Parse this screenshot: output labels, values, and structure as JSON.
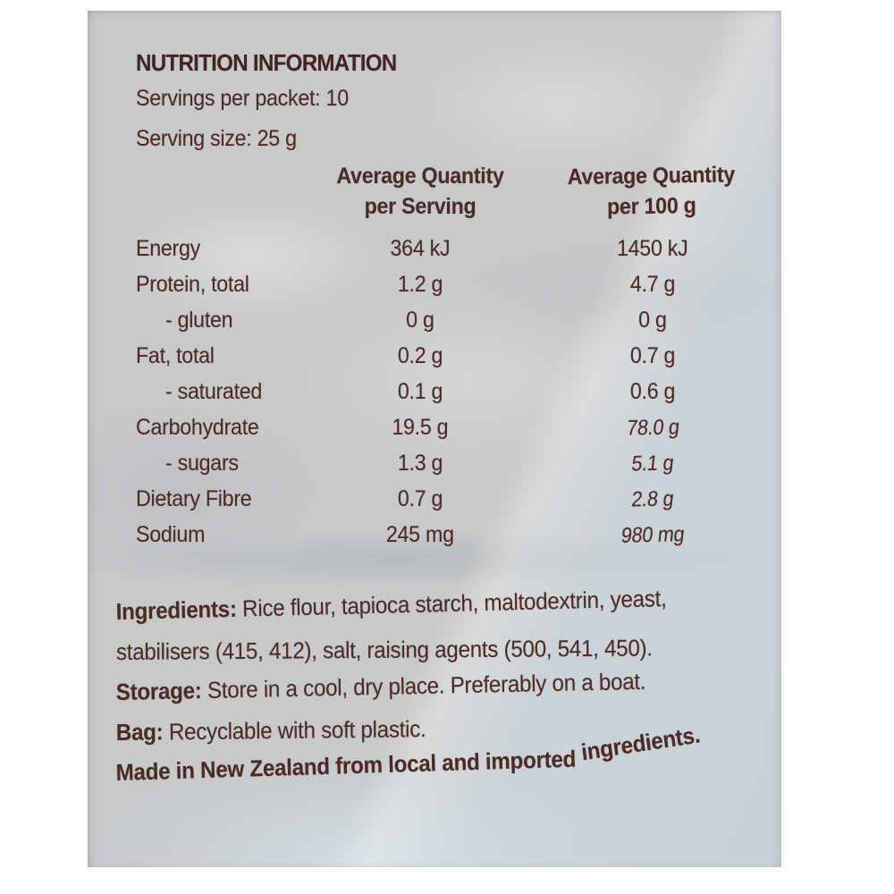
{
  "colors": {
    "text": "#4e2a24",
    "title_text": "#45231e",
    "label_background": "#c7c9cb",
    "page_background": "#ffffff"
  },
  "label": {
    "title": "NUTRITION INFORMATION",
    "servings_per_packet": "Servings per packet: 10",
    "serving_size": "Serving size: 25 g",
    "columns": {
      "per_serving": [
        "Average Quantity",
        "per Serving"
      ],
      "per_100g": [
        "Average Quantity",
        "per 100 g"
      ]
    },
    "rows": [
      {
        "name": "Energy",
        "per_serving": "364 kJ",
        "per_100g": "1450 kJ"
      },
      {
        "name": "Protein, total",
        "per_serving": "1.2 g",
        "per_100g": "4.7 g"
      },
      {
        "name": "- gluten",
        "per_serving": "0 g",
        "per_100g": "0 g"
      },
      {
        "name": "Fat, total",
        "per_serving": "0.2 g",
        "per_100g": "0.7 g"
      },
      {
        "name": "- saturated",
        "per_serving": "0.1 g",
        "per_100g": "0.6 g"
      },
      {
        "name": "Carbohydrate",
        "per_serving": "19.5 g",
        "per_100g": "78.0 g"
      },
      {
        "name": "- sugars",
        "per_serving": "1.3 g",
        "per_100g": "5.1 g"
      },
      {
        "name": "Dietary Fibre",
        "per_serving": "0.7 g",
        "per_100g": "2.8 g"
      },
      {
        "name": "Sodium",
        "per_serving": "245 mg",
        "per_100g": "980 mg"
      }
    ],
    "ingredients": {
      "label": "Ingredients:",
      "line1_rest": " Rice flour, tapioca starch, maltodextrin, yeast,",
      "line2": "stabilisers (415, 412), salt, raising agents (500, 541, 450)."
    },
    "storage": {
      "label": "Storage:",
      "text": " Store in a cool, dry place. Preferably on a boat."
    },
    "bag": {
      "label": "Bag:",
      "text": " Recyclable with soft plastic."
    },
    "made_in": {
      "part1": "Made in New Zealand from local and imported",
      "part2": "ingredients."
    }
  }
}
